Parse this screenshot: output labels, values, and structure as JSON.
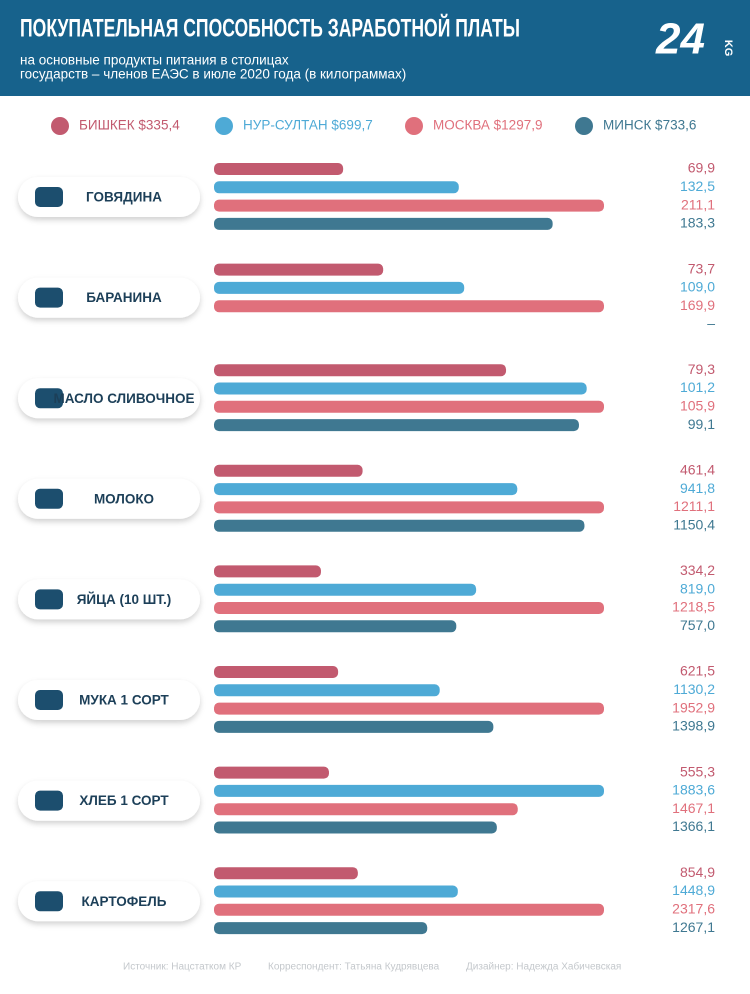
{
  "chart_data": {
    "type": "bar",
    "title": "ПОКУПАТЕЛЬНАЯ СПОСОБНОСТЬ ЗАРАБОТНОЙ ПЛАТЫ",
    "subtitle": [
      "на основные продукты питания в столицах",
      "государств – членов ЕАЭС в июле 2020 года (в килограммах)"
    ],
    "categories": [
      "ГОВЯДИНА",
      "БАРАНИНА",
      "МАСЛО СЛИВОЧНОЕ",
      "МОЛОКО",
      "ЯЙЦА (10 ШТ.)",
      "МУКА 1 СОРТ",
      "ХЛЕБ 1 СОРТ",
      "КАРТОФЕЛЬ"
    ],
    "series": [
      {
        "name": "БИШКЕК $335,4",
        "color": "#c25a6f",
        "values": [
          69.9,
          73.7,
          79.3,
          461.4,
          334.2,
          621.5,
          555.3,
          854.9
        ],
        "value_labels": [
          "69,9",
          "73,7",
          "79,3",
          "461,4",
          "334,2",
          "621,5",
          "555,3",
          "854,9"
        ]
      },
      {
        "name": "НУР-СУЛТАН $699,7",
        "color": "#4eaad6",
        "values": [
          132.5,
          109.0,
          101.2,
          941.8,
          819.0,
          1130.2,
          1883.6,
          1448.9
        ],
        "value_labels": [
          "132,5",
          "109,0",
          "101,2",
          "941,8",
          "819,0",
          "1130,2",
          "1883,6",
          "1448,9"
        ]
      },
      {
        "name": "МОСКВА $1297,9",
        "color": "#e0707c",
        "values": [
          211.1,
          169.9,
          105.9,
          1211.1,
          1218.5,
          1952.9,
          1467.1,
          2317.6
        ],
        "value_labels": [
          "211,1",
          "169,9",
          "105,9",
          "1211,1",
          "1218,5",
          "1952,9",
          "1467,1",
          "2317,6"
        ]
      },
      {
        "name": "МИНСК $733,6",
        "color": "#3f7891",
        "values": [
          183.3,
          null,
          99.1,
          1150.4,
          757.0,
          1398.9,
          1366.1,
          1267.1
        ],
        "value_labels": [
          "183,3",
          "–",
          "99,1",
          "1150,4",
          "757,0",
          "1398,9",
          "1366,1",
          "1267,1"
        ]
      }
    ]
  },
  "logo": {
    "number": "24",
    "suffix": "KG"
  },
  "footer": [
    "Источник: Нацстатком КР",
    "Корреспондент: Татьяна Кудрявцева",
    "Дизайнер: Надежда Хабичевская"
  ]
}
